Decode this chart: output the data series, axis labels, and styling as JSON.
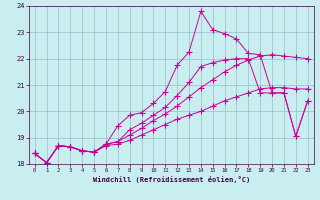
{
  "xlabel": "Windchill (Refroidissement éolien,°C)",
  "background_color": "#c8eef0",
  "grid_color": "#99bbcc",
  "line_color": "#cc0099",
  "xlim": [
    -0.5,
    23.5
  ],
  "ylim": [
    18,
    24
  ],
  "yticks": [
    18,
    19,
    20,
    21,
    22,
    23,
    24
  ],
  "xticks": [
    0,
    1,
    2,
    3,
    4,
    5,
    6,
    7,
    8,
    9,
    10,
    11,
    12,
    13,
    14,
    15,
    16,
    17,
    18,
    19,
    20,
    21,
    22,
    23
  ],
  "series": [
    {
      "x": [
        0,
        1,
        2,
        3,
        4,
        5,
        6,
        7,
        8,
        9,
        10,
        11,
        12,
        13,
        14,
        15,
        16,
        17,
        18,
        19,
        20,
        21,
        22,
        23
      ],
      "y": [
        18.4,
        18.05,
        18.7,
        18.65,
        18.5,
        18.45,
        18.7,
        18.75,
        18.9,
        19.1,
        19.3,
        19.5,
        19.7,
        19.85,
        20.0,
        20.2,
        20.4,
        20.55,
        20.7,
        20.85,
        20.9,
        20.9,
        20.85,
        20.85
      ]
    },
    {
      "x": [
        0,
        1,
        2,
        3,
        4,
        5,
        6,
        7,
        8,
        9,
        10,
        11,
        12,
        13,
        14,
        15,
        16,
        17,
        18,
        19,
        20,
        21,
        22,
        23
      ],
      "y": [
        18.4,
        18.05,
        18.7,
        18.65,
        18.5,
        18.45,
        18.75,
        18.85,
        19.1,
        19.35,
        19.65,
        19.9,
        20.2,
        20.55,
        20.9,
        21.2,
        21.5,
        21.75,
        21.95,
        22.1,
        22.15,
        22.1,
        22.05,
        22.0
      ]
    },
    {
      "x": [
        0,
        1,
        2,
        3,
        4,
        5,
        6,
        7,
        8,
        9,
        10,
        11,
        12,
        13,
        14,
        15,
        16,
        17,
        18,
        19,
        20,
        21,
        22,
        23
      ],
      "y": [
        18.4,
        18.05,
        18.7,
        18.65,
        18.5,
        18.45,
        18.75,
        18.85,
        19.3,
        19.55,
        19.85,
        20.15,
        20.6,
        21.1,
        21.7,
        21.85,
        21.95,
        22.0,
        22.0,
        20.7,
        20.7,
        20.7,
        19.05,
        20.4
      ]
    },
    {
      "x": [
        0,
        1,
        2,
        3,
        4,
        5,
        6,
        7,
        8,
        9,
        10,
        11,
        12,
        13,
        14,
        15,
        16,
        17,
        18,
        19,
        20,
        21,
        22,
        23
      ],
      "y": [
        18.4,
        18.05,
        18.7,
        18.65,
        18.5,
        18.45,
        18.75,
        19.45,
        19.85,
        19.95,
        20.3,
        20.75,
        21.75,
        22.25,
        23.8,
        23.1,
        22.95,
        22.75,
        22.2,
        22.15,
        20.7,
        20.7,
        19.05,
        20.4
      ]
    }
  ]
}
